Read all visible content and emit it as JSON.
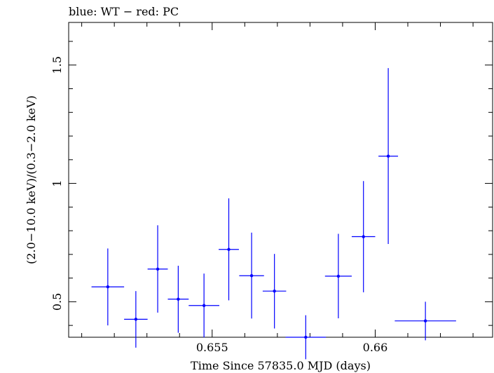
{
  "chart_data": {
    "type": "scatter",
    "title": "blue: WT − red: PC",
    "xlabel": "Time Since 57835.0 MJD (days)",
    "ylabel": "(2.0−10.0 keV)/(0.3−2.0 keV)",
    "xlim": [
      0.6506,
      0.6636
    ],
    "ylim": [
      0.35,
      1.68
    ],
    "x_ticks": [
      {
        "value": 0.655,
        "label": "0.655"
      },
      {
        "value": 0.66,
        "label": "0.66"
      }
    ],
    "y_ticks": [
      {
        "value": 0.5,
        "label": "0.5"
      },
      {
        "value": 1.0,
        "label": "1"
      },
      {
        "value": 1.5,
        "label": "1.5"
      }
    ],
    "series": [
      {
        "color": "#0000ff",
        "points": [
          {
            "x": 0.6518,
            "xerr": 0.0005,
            "y": 0.563,
            "ylo": 0.4,
            "yhi": 0.725
          },
          {
            "x": 0.65266,
            "xerr": 0.00036,
            "y": 0.426,
            "ylo": 0.306,
            "yhi": 0.545
          },
          {
            "x": 0.65333,
            "xerr": 0.00031,
            "y": 0.638,
            "ylo": 0.454,
            "yhi": 0.823
          },
          {
            "x": 0.65396,
            "xerr": 0.00032,
            "y": 0.511,
            "ylo": 0.369,
            "yhi": 0.652
          },
          {
            "x": 0.65475,
            "xerr": 0.00047,
            "y": 0.484,
            "ylo": 0.349,
            "yhi": 0.619
          },
          {
            "x": 0.65551,
            "xerr": 0.00031,
            "y": 0.721,
            "ylo": 0.506,
            "yhi": 0.937
          },
          {
            "x": 0.65621,
            "xerr": 0.00038,
            "y": 0.61,
            "ylo": 0.429,
            "yhi": 0.792
          },
          {
            "x": 0.65691,
            "xerr": 0.00036,
            "y": 0.545,
            "ylo": 0.387,
            "yhi": 0.702
          },
          {
            "x": 0.65787,
            "xerr": 0.00062,
            "y": 0.35,
            "ylo": 0.257,
            "yhi": 0.443
          },
          {
            "x": 0.65887,
            "xerr": 0.00041,
            "y": 0.608,
            "ylo": 0.43,
            "yhi": 0.787
          },
          {
            "x": 0.65964,
            "xerr": 0.00036,
            "y": 0.775,
            "ylo": 0.54,
            "yhi": 1.01
          },
          {
            "x": 0.6604,
            "xerr": 0.0003,
            "y": 1.115,
            "ylo": 0.744,
            "yhi": 1.487
          },
          {
            "x": 0.66154,
            "xerr": 0.00094,
            "y": 0.419,
            "ylo": 0.337,
            "yhi": 0.5
          }
        ]
      }
    ]
  }
}
